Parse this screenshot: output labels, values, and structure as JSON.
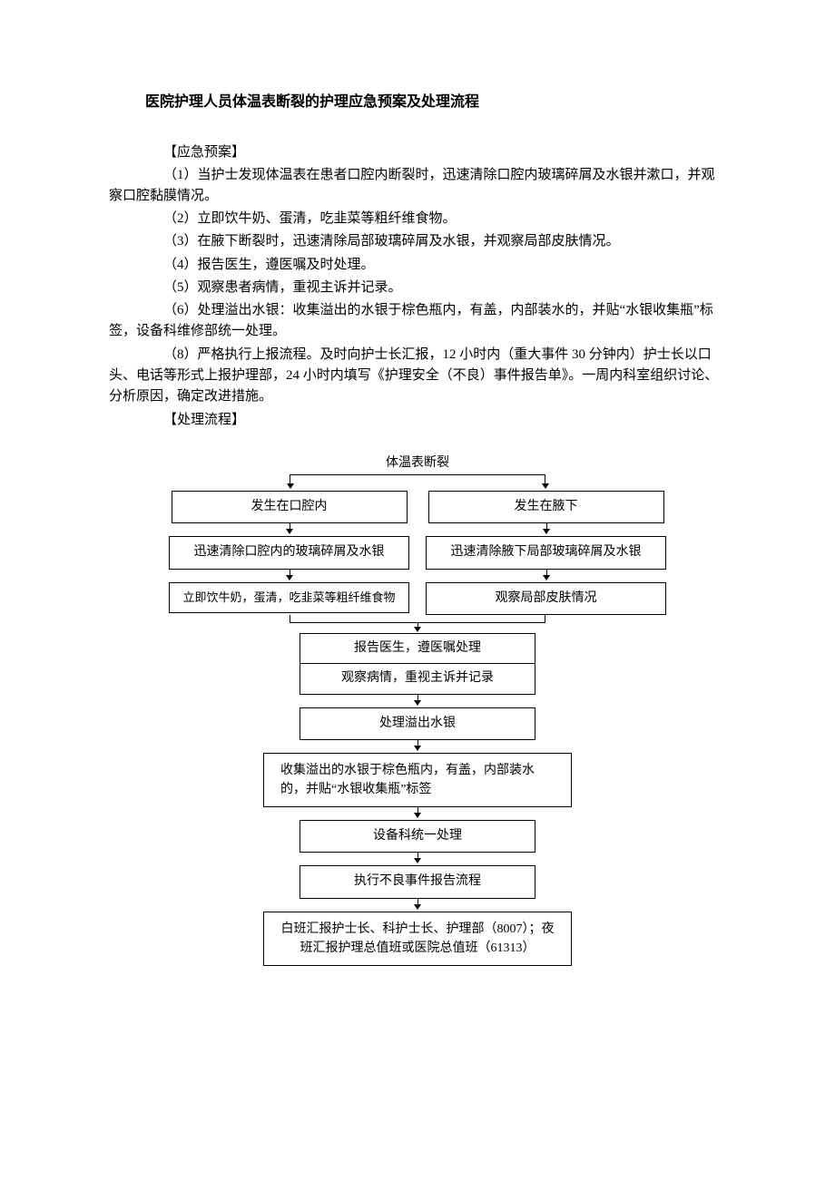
{
  "title": "医院护理人员体温表断裂的护理应急预案及处理流程",
  "sections": {
    "plan_header": "【应急预案】",
    "p1": "（1）当护士发现体温表在患者口腔内断裂时，迅速清除口腔内玻璃碎屑及水银并漱口，并观察口腔黏膜情况。",
    "p2": "（2）立即饮牛奶、蛋清，吃韭菜等粗纤维食物。",
    "p3": "（3）在腋下断裂时，迅速清除局部玻璃碎屑及水银，并观察局部皮肤情况。",
    "p4": "（4）报告医生，遵医嘱及时处理。",
    "p5": "（5）观察患者病情，重视主诉并记录。",
    "p6": "（6）处理溢出水银：收集溢出的水银于棕色瓶内，有盖，内部装水的，并贴“水银收集瓶”标签，设备科维修部统一处理。",
    "p8": "（8）严格执行上报流程。及时向护士长汇报，12 小时内（重大事件 30 分钟内）护士长以口头、电话等形式上报护理部，24 小时内填写《护理安全（不良）事件报告单》。一周内科室组织讨论、分析原因，确定改进措施。",
    "flow_header": "【处理流程】"
  },
  "flowchart": {
    "type": "flowchart",
    "colors": {
      "border": "#000000",
      "background": "#ffffff",
      "text": "#000000"
    },
    "fontsize": 14,
    "top_label": "体温表断裂",
    "left": {
      "n1": "发生在口腔内",
      "n2": "迅速清除口腔内的玻璃碎屑及水银",
      "n3": "立即饮牛奶，蛋清，吃韭菜等粗纤维食物"
    },
    "right": {
      "n1": "发生在腋下",
      "n2": "迅速清除腋下局部玻璃碎屑及水银",
      "n3": "观察局部皮肤情况"
    },
    "merged": {
      "m1a": "报告医生，遵医嘱处理",
      "m1b": "观察病情，重视主诉并记录",
      "m2": "处理溢出水银",
      "m3": "收集溢出的水银于棕色瓶内，有盖，内部装水的，并贴“水银收集瓶”标签",
      "m4": "设备科统一处理",
      "m5": "执行不良事件报告流程",
      "m6": "白班汇报护士长、科护士长、护理部（8007）；夜班汇报护理总值班或医院总值班（61313）"
    }
  }
}
